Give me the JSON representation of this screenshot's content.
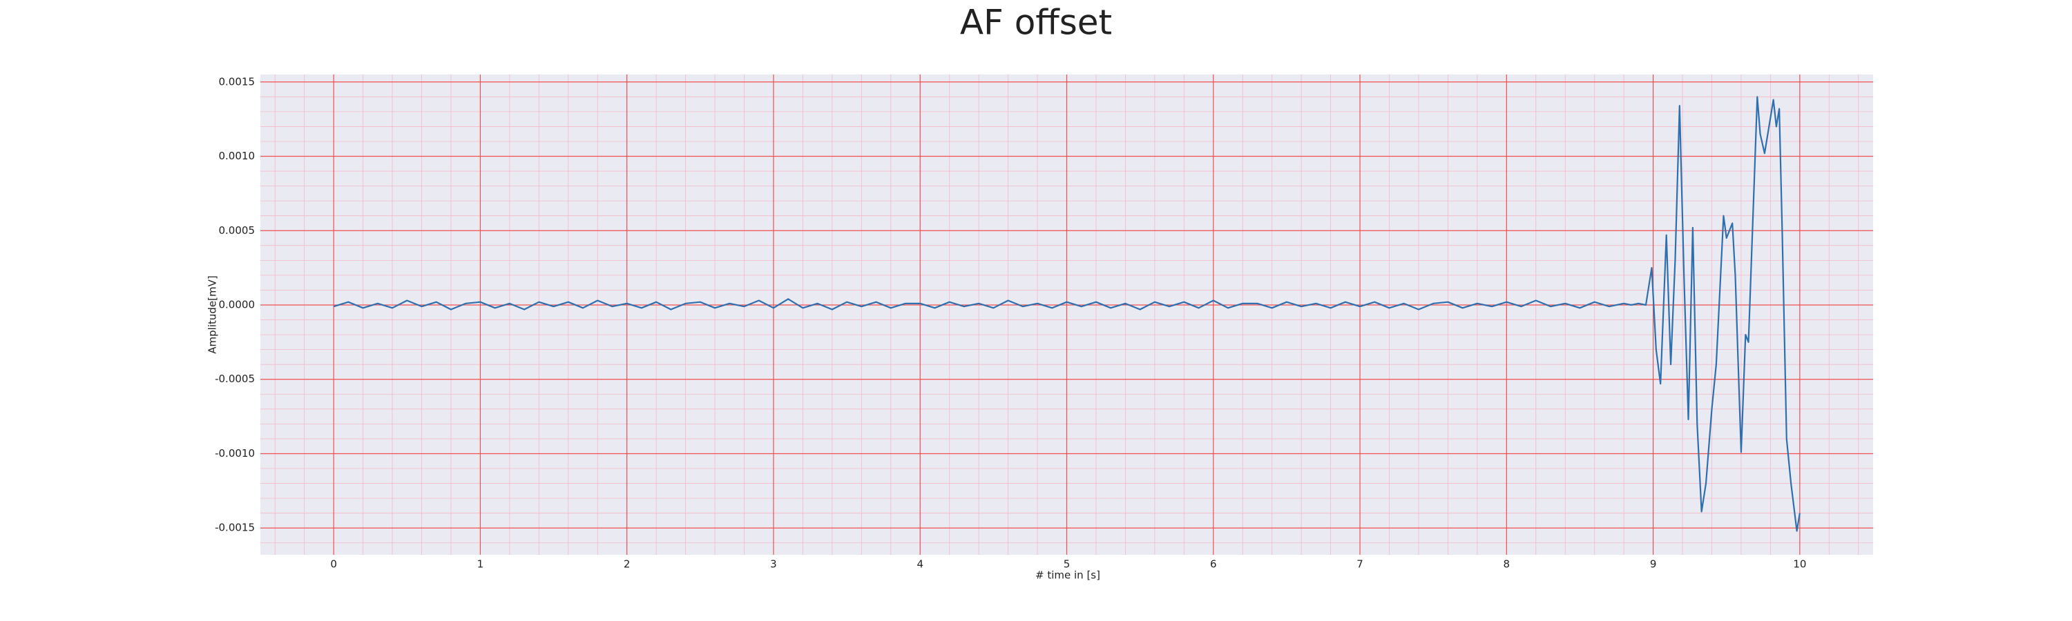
{
  "chart_data": {
    "type": "line",
    "title": "AF offset",
    "x_label": "# time in [s]",
    "y_label": "Amplitude[mV]",
    "color": "#2f6fad",
    "grid": true,
    "minor_grid": true,
    "xlim": [
      -0.5,
      10.5
    ],
    "xticks": [
      0,
      1,
      2,
      3,
      4,
      5,
      6,
      7,
      8,
      9,
      10
    ],
    "ylim": [
      -0.00168,
      0.00155
    ],
    "yticks": [
      {
        "value": -0.0015,
        "label": "-0.0015"
      },
      {
        "value": -0.001,
        "label": "-0.0010"
      },
      -0.0005,
      {
        "value": 0,
        "label": "0.0000"
      },
      0.0005,
      {
        "value": 0.001,
        "label": "0.0010"
      },
      0.0015
    ],
    "x": [
      0,
      0.1,
      0.2,
      0.3,
      0.4,
      0.5,
      0.6,
      0.7,
      0.8,
      0.9,
      1,
      1.1,
      1.2,
      1.3,
      1.4,
      1.5,
      1.6,
      1.7,
      1.8,
      1.9,
      2,
      2.1,
      2.2,
      2.3,
      2.4,
      2.5,
      2.6,
      2.7,
      2.8,
      2.9,
      3,
      3.1,
      3.2,
      3.3,
      3.4,
      3.5,
      3.6,
      3.7,
      3.8,
      3.9,
      4,
      4.1,
      4.2,
      4.3,
      4.4,
      4.5,
      4.6,
      4.7,
      4.8,
      4.9,
      5,
      5.1,
      5.2,
      5.3,
      5.4,
      5.5,
      5.6,
      5.7,
      5.8,
      5.9,
      6,
      6.1,
      6.2,
      6.3,
      6.4,
      6.5,
      6.6,
      6.7,
      6.8,
      6.9,
      7,
      7.1,
      7.2,
      7.3,
      7.4,
      7.5,
      7.6,
      7.7,
      7.8,
      7.9,
      8,
      8.1,
      8.2,
      8.3,
      8.4,
      8.5,
      8.6,
      8.7,
      8.8,
      8.85,
      8.9,
      8.95,
      8.99,
      9.02,
      9.05,
      9.09,
      9.12,
      9.15,
      9.18,
      9.21,
      9.24,
      9.27,
      9.3,
      9.33,
      9.36,
      9.4,
      9.43,
      9.46,
      9.48,
      9.5,
      9.52,
      9.54,
      9.56,
      9.58,
      9.6,
      9.63,
      9.65,
      9.67,
      9.71,
      9.73,
      9.76,
      9.79,
      9.82,
      9.84,
      9.86,
      9.88,
      9.91,
      9.94,
      9.98,
      10
    ],
    "values": [
      -1e-05,
      2e-05,
      -2e-05,
      1e-05,
      -2e-05,
      3e-05,
      -1e-05,
      2e-05,
      -3e-05,
      1e-05,
      2e-05,
      -2e-05,
      1e-05,
      -3e-05,
      2e-05,
      -1e-05,
      2e-05,
      -2e-05,
      3e-05,
      -1e-05,
      1e-05,
      -2e-05,
      2e-05,
      -3e-05,
      1e-05,
      2e-05,
      -2e-05,
      1e-05,
      -1e-05,
      3e-05,
      -2e-05,
      4e-05,
      -2e-05,
      1e-05,
      -3e-05,
      2e-05,
      -1e-05,
      2e-05,
      -2e-05,
      1e-05,
      1e-05,
      -2e-05,
      2e-05,
      -1e-05,
      1e-05,
      -2e-05,
      3e-05,
      -1e-05,
      1e-05,
      -2e-05,
      2e-05,
      -1e-05,
      2e-05,
      -2e-05,
      1e-05,
      -3e-05,
      2e-05,
      -1e-05,
      2e-05,
      -2e-05,
      3e-05,
      -2e-05,
      1e-05,
      1e-05,
      -2e-05,
      2e-05,
      -1e-05,
      1e-05,
      -2e-05,
      2e-05,
      -1e-05,
      2e-05,
      -2e-05,
      1e-05,
      -3e-05,
      1e-05,
      2e-05,
      -2e-05,
      1e-05,
      -1e-05,
      2e-05,
      -1e-05,
      3e-05,
      -1e-05,
      1e-05,
      -2e-05,
      2e-05,
      -1e-05,
      1e-05,
      0,
      1e-05,
      0,
      0.00025,
      -0.0003,
      -0.00053,
      0.00047,
      -0.0004,
      0.0003,
      0.00134,
      0.0002,
      -0.00077,
      0.00052,
      -0.0008,
      -0.00139,
      -0.0012,
      -0.0007,
      -0.0004,
      0.0002,
      0.0006,
      0.00045,
      0.0005,
      0.00055,
      0.0002,
      -0.0004,
      -0.00099,
      -0.0002,
      -0.00025,
      0.0003,
      0.0014,
      0.00115,
      0.00102,
      0.0012,
      0.00138,
      0.0012,
      0.00132,
      0.0005,
      -0.0009,
      -0.0012,
      -0.00152,
      -0.0014
    ]
  }
}
